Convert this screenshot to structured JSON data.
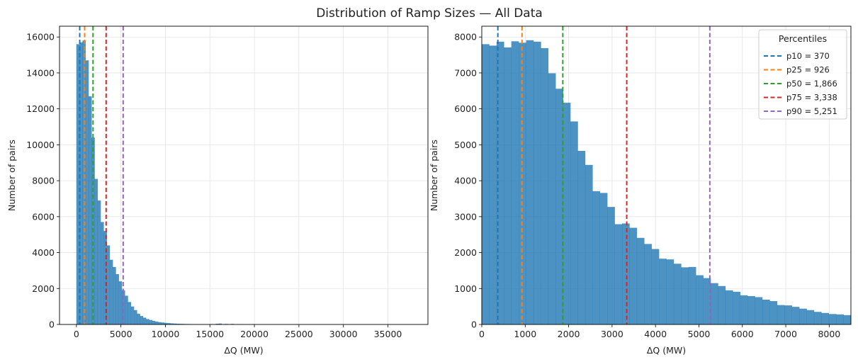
{
  "chart_data": {
    "title": "Distribution of Ramp Sizes — All Data",
    "bar_color": "#1f77b4",
    "percentiles": [
      {
        "name": "p10",
        "value": 370,
        "color": "#1f77b4",
        "label": "p10 = 370"
      },
      {
        "name": "p25",
        "value": 926,
        "color": "#ff7f0e",
        "label": "p25 = 926"
      },
      {
        "name": "p50",
        "value": 1866,
        "color": "#2ca02c",
        "label": "p50 = 1,866"
      },
      {
        "name": "p75",
        "value": 3338,
        "color": "#d62728",
        "label": "p75 = 3,338"
      },
      {
        "name": "p90",
        "value": 5251,
        "color": "#9467bd",
        "label": "p90 = 5,251"
      }
    ],
    "panels": [
      {
        "type": "bar",
        "subtype": "histogram",
        "xlabel": "ΔQ (MW)",
        "ylabel": "Number of pairs",
        "xlim": [
          -1900,
          39500
        ],
        "ylim": [
          0,
          16600
        ],
        "xticks": [
          0,
          5000,
          10000,
          15000,
          20000,
          25000,
          30000,
          35000
        ],
        "yticks": [
          0,
          2000,
          4000,
          6000,
          8000,
          10000,
          12000,
          14000,
          16000
        ],
        "bin_start": 0,
        "bin_width": 340,
        "values": [
          15600,
          15700,
          15800,
          14700,
          12700,
          10400,
          8100,
          6900,
          5700,
          5200,
          4400,
          3600,
          3200,
          2800,
          2400,
          1900,
          1600,
          1250,
          1000,
          800,
          600,
          470,
          380,
          300,
          250,
          200,
          160,
          130,
          110,
          90,
          75,
          60,
          50,
          42,
          35,
          30,
          25,
          22,
          18,
          15,
          12,
          10,
          9,
          8,
          8,
          10,
          40,
          50,
          12,
          30,
          8,
          30,
          5,
          15,
          5,
          4,
          4,
          3,
          3,
          3,
          3,
          2,
          2,
          2,
          2,
          2,
          2,
          2,
          1,
          1,
          1,
          1,
          1,
          1,
          1,
          1,
          1,
          1,
          1,
          1,
          1,
          1,
          1,
          1,
          1,
          1,
          1,
          1,
          1,
          1,
          1,
          1,
          1,
          1,
          1,
          1,
          1,
          1,
          1,
          1,
          1,
          1,
          1,
          1,
          1,
          1,
          1,
          1,
          1,
          1
        ],
        "grid": true,
        "legend": null
      },
      {
        "type": "bar",
        "subtype": "histogram",
        "xlabel": "ΔQ (MW)",
        "ylabel": "Number of pairs",
        "xlim": [
          0,
          8500
        ],
        "ylim": [
          0,
          8300
        ],
        "xticks": [
          0,
          1000,
          2000,
          3000,
          4000,
          5000,
          6000,
          7000,
          8000
        ],
        "yticks": [
          0,
          1000,
          2000,
          3000,
          4000,
          5000,
          6000,
          7000,
          8000
        ],
        "bin_start": 0,
        "bin_width": 170,
        "values": [
          7800,
          7760,
          7870,
          7710,
          7880,
          7840,
          7910,
          7870,
          7690,
          6990,
          6560,
          6170,
          5650,
          4830,
          4440,
          3710,
          3660,
          3270,
          2790,
          2810,
          2690,
          2410,
          2240,
          2100,
          1830,
          1810,
          1690,
          1590,
          1600,
          1370,
          1290,
          1150,
          1070,
          950,
          910,
          810,
          790,
          760,
          690,
          650,
          540,
          530,
          490,
          440,
          400,
          350,
          320,
          290,
          280,
          260
        ],
        "grid": true,
        "legend": {
          "title": "Percentiles",
          "placement": "top-right"
        }
      }
    ]
  }
}
